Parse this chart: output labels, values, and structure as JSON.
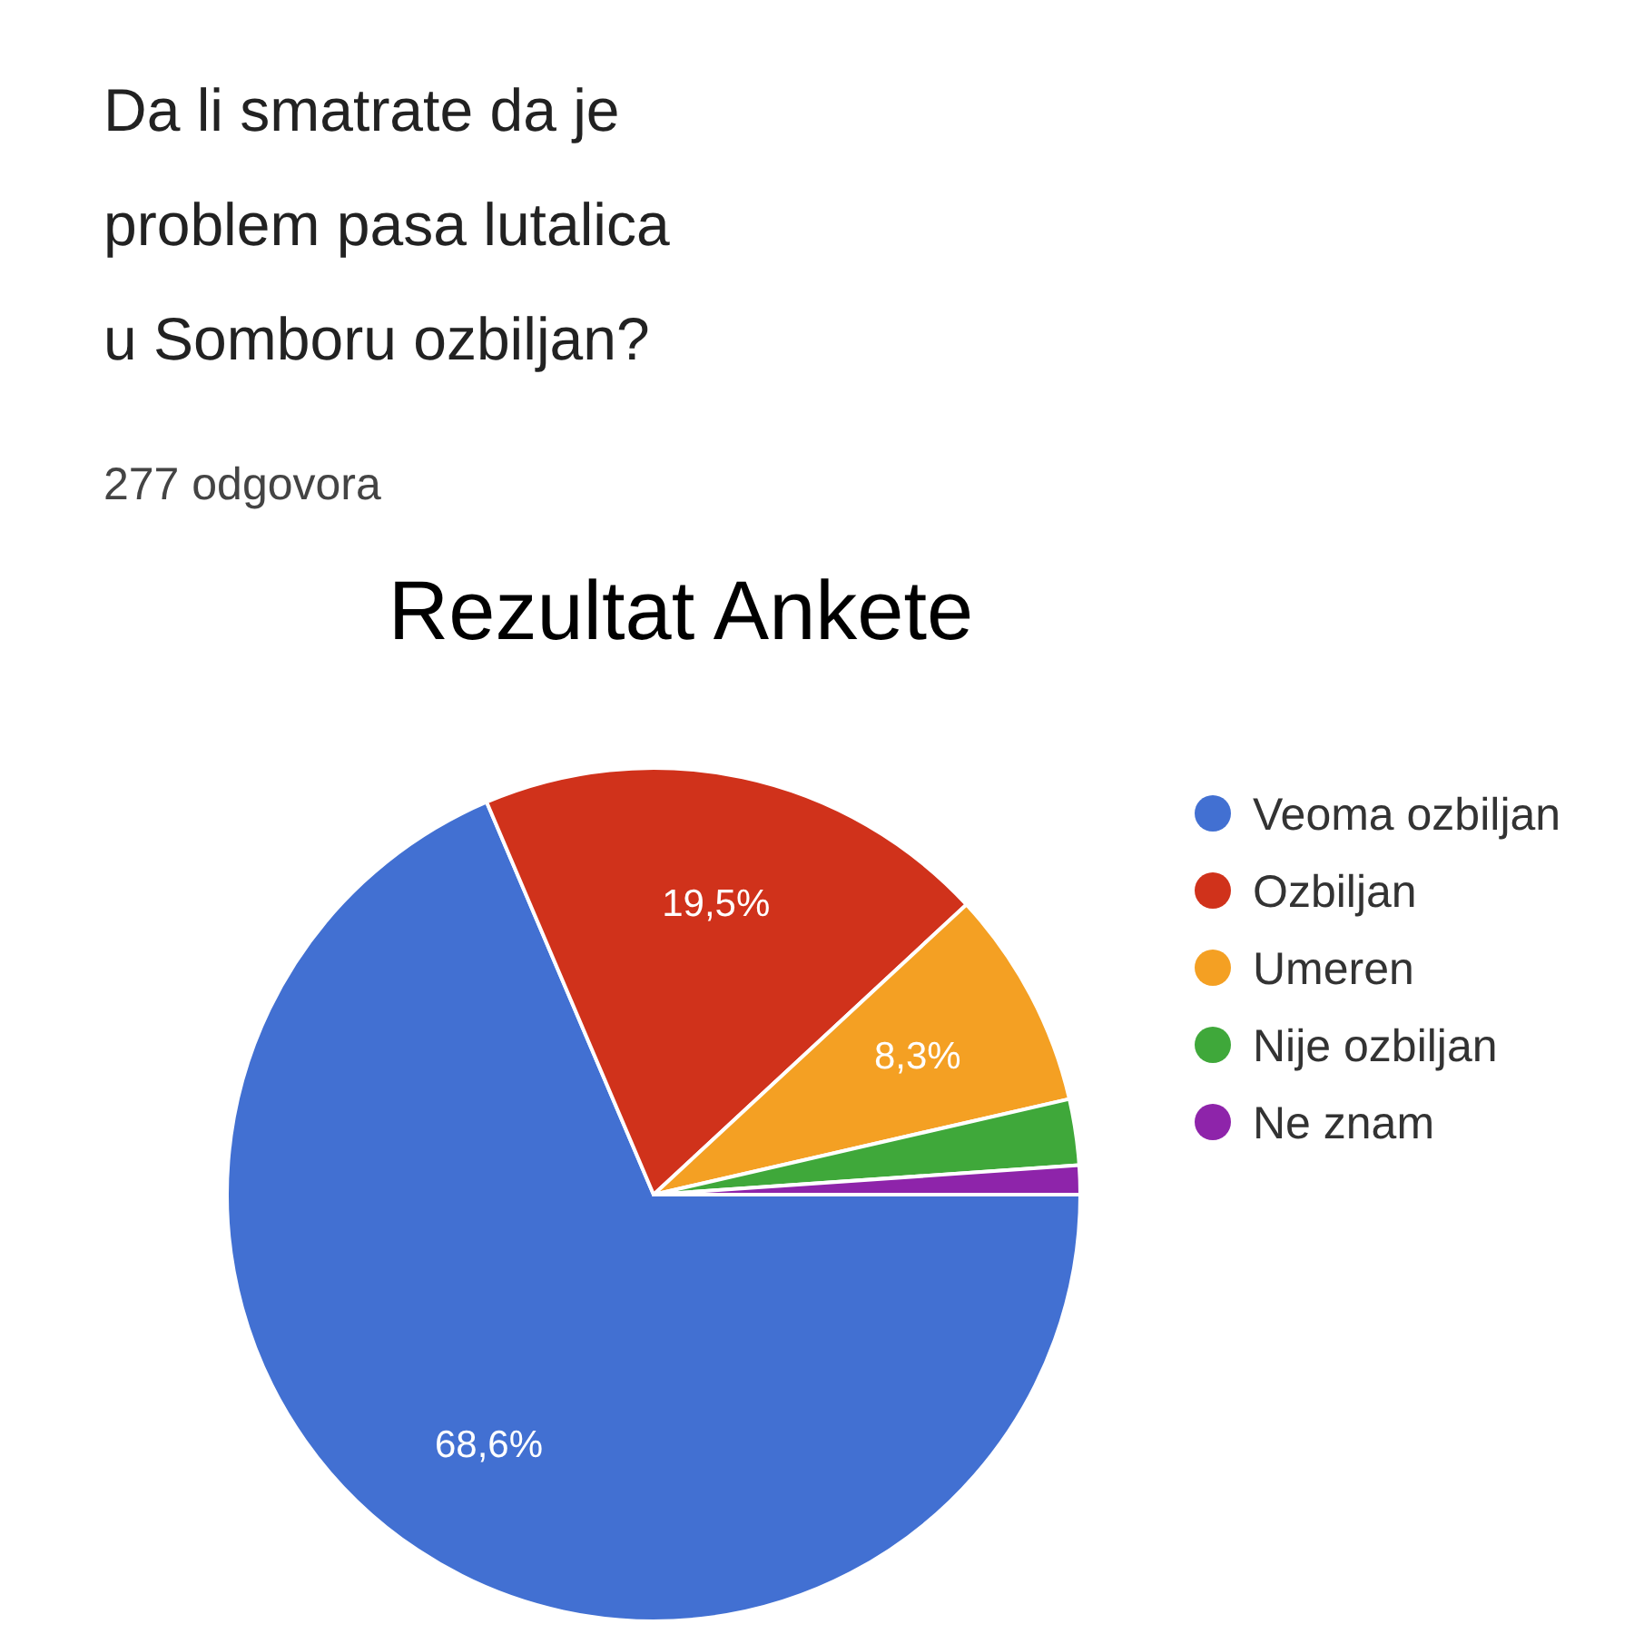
{
  "chart_data": {
    "type": "pie",
    "title": "Da li smatrate da je problem pasa lutalica u Somboru ozbiljan?",
    "subtitle": "277 odgovora",
    "annotations": [
      "Rezultat Ankete"
    ],
    "categories": [
      "Veoma ozbiljan",
      "Ozbiljan",
      "Umeren",
      "Nije ozbiljan",
      "Ne znam"
    ],
    "values": [
      68.6,
      19.5,
      8.3,
      2.5,
      1.1
    ],
    "colors": [
      "#4270d2",
      "#d0321b",
      "#f4a023",
      "#3fa83a",
      "#8e24aa"
    ],
    "value_labels": [
      "68,6%",
      "19,5%",
      "8,3%",
      null,
      null
    ],
    "legend": "right"
  }
}
